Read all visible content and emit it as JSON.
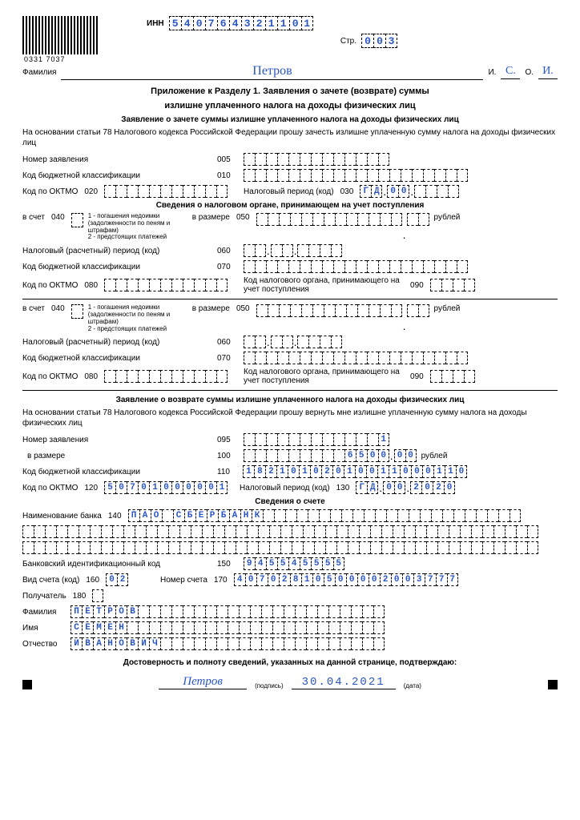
{
  "barcode_number": "0331 7037",
  "inn_label": "ИНН",
  "inn": "540764321101",
  "page_label": "Стр.",
  "page": "003",
  "surname_label": "Фамилия",
  "surname": "Петров",
  "initial_i_label": "И.",
  "initial_i": "С.",
  "initial_o_label": "О.",
  "initial_o": "И.",
  "title1": "Приложение к Разделу 1. Заявления о зачете (возврате) суммы",
  "title2": "излишне уплаченного налога на доходы физических лиц",
  "subtitle1": "Заявление о зачете суммы излишне уплаченного налога на доходы физических лиц",
  "para1": "На основании статьи 78 Налогового кодекса Российской Федерации прошу зачесть излишне уплаченную сумму налога на доходы физических лиц",
  "app_num_label": "Номер заявления",
  "app_num_code": "005",
  "kbk_label": "Код бюджетной классификации",
  "kbk_code": "010",
  "oktmo_label": "Код по ОКТМО",
  "oktmo_code": "020",
  "tax_period_label": "Налоговый период (код)",
  "tax_period_code": "030",
  "tax_period_val": [
    "Г",
    "Д",
    " ",
    "0",
    "0",
    " ",
    " ",
    " ",
    " ",
    " "
  ],
  "section2_title": "Сведения о налоговом органе, принимающем на учет поступления",
  "vschet_label": "в счет",
  "vschet_code": "040",
  "vschet_note1": "1 - погашения недоимки",
  "vschet_note2": "(задолженности по пеням и штрафам)",
  "vschet_note3": "2 - предстоящих платежей",
  "vrazmere_label": "в размере",
  "vrazmere_code": "050",
  "rub_label": "рублей",
  "calc_period_label": "Налоговый (расчетный) период (код)",
  "calc_period_code": "060",
  "kbk2_code": "070",
  "oktmo2_code": "080",
  "tax_organ_label": "Код налогового органа, принимающего на учет поступления",
  "tax_organ_code": "090",
  "subtitle2": "Заявление о возврате суммы излишне уплаченного налога на доходы физических лиц",
  "para2": "На основании статьи 78 Налогового кодекса Российской Федерации прошу вернуть мне излишне уплаченную сумму налога на доходы физических лиц",
  "app_num2_code": "095",
  "app_num2_val": "            1",
  "vrazmere2_code": "100",
  "amount_int": "         6500",
  "amount_dec": "00",
  "kbk3_code": "110",
  "kbk3_val": "18210102010011000110",
  "oktmo3_code": "120",
  "oktmo3_val": "50701000001",
  "tax_period3_code": "130",
  "tax_period3_a": "ГД",
  "tax_period3_b": "00",
  "tax_period3_c": "2020",
  "account_title": "Сведения о счете",
  "bank_name_label": "Наименование банка",
  "bank_name_code": "140",
  "bank_name_val": "ПАО СБЕРБАНК",
  "bik_label": "Банковский идентификационный код",
  "bik_code": "150",
  "bik_val": "945545555",
  "acct_type_label": "Вид счета (код)",
  "acct_type_code": "160",
  "acct_type_val": "02",
  "acct_num_label": "Номер счета",
  "acct_num_code": "170",
  "acct_num_val": "40702810500002003777",
  "recipient_label": "Получатель",
  "recipient_code": "180",
  "fam_label": "Фамилия",
  "fam_val": "ПЕТРОВ",
  "name_label": "Имя",
  "name_val": "СЕМЕН",
  "patr_label": "Отчество",
  "patr_val": "ИВАНОВИЧ",
  "footer_text": "Достоверность и полноту сведений, указанных на данной странице, подтверждаю:",
  "signature": "Петров",
  "sign_label": "(подпись)",
  "date": "30.04.2021",
  "date_label": "(дата)",
  "colors": {
    "ink": "#2956c4",
    "black": "#000000"
  }
}
